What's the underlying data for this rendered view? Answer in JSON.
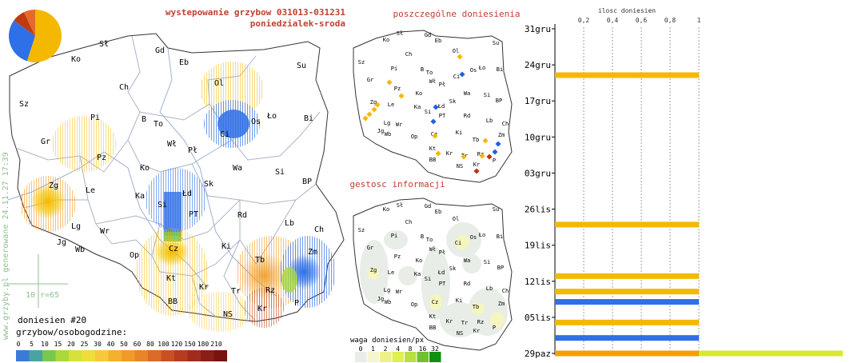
{
  "title": {
    "line1": "wystepowanie grzybow 031013-031231",
    "line2": "poniedzialek-sroda"
  },
  "watermark": "www.grzyby.pl generowane 24.11.27 17:39",
  "scale_marker": "10 r=65",
  "reports_count": "doniesien #20",
  "colorscale": {
    "title": "grzybow/osobogodzine:",
    "ticks": [
      "0",
      "5",
      "10",
      "15",
      "20",
      "25",
      "30",
      "40",
      "50",
      "60",
      "80",
      "100",
      "120",
      "150",
      "180",
      "210"
    ],
    "colors": [
      "#3a7bd5",
      "#4aa3a0",
      "#78c850",
      "#a9d93a",
      "#d6e23a",
      "#f0dc3a",
      "#f7c83a",
      "#f5b030",
      "#f09a2a",
      "#e8842a",
      "#dc6a28",
      "#c85024",
      "#b43c20",
      "#a02c1c",
      "#8c1e18",
      "#781410"
    ]
  },
  "main_map": {
    "labels": [
      {
        "text": "Sł",
        "x": 130,
        "y": 58
      },
      {
        "text": "Gd",
        "x": 200,
        "y": 66
      },
      {
        "text": "Ko",
        "x": 95,
        "y": 77
      },
      {
        "text": "Eb",
        "x": 230,
        "y": 81
      },
      {
        "text": "Su",
        "x": 377,
        "y": 85
      },
      {
        "text": "Ol",
        "x": 274,
        "y": 107
      },
      {
        "text": "Ch",
        "x": 155,
        "y": 112
      },
      {
        "text": "Sz",
        "x": 30,
        "y": 133
      },
      {
        "text": "Pi",
        "x": 119,
        "y": 150
      },
      {
        "text": "B",
        "x": 180,
        "y": 152
      },
      {
        "text": "To",
        "x": 198,
        "y": 158
      },
      {
        "text": "Os",
        "x": 320,
        "y": 155
      },
      {
        "text": "Ło",
        "x": 340,
        "y": 148
      },
      {
        "text": "Bi",
        "x": 386,
        "y": 151
      },
      {
        "text": "Ci",
        "x": 281,
        "y": 171
      },
      {
        "text": "Gr",
        "x": 57,
        "y": 180
      },
      {
        "text": "Wł",
        "x": 215,
        "y": 183
      },
      {
        "text": "Pł",
        "x": 241,
        "y": 191
      },
      {
        "text": "Pz",
        "x": 127,
        "y": 200
      },
      {
        "text": "Ko",
        "x": 181,
        "y": 213
      },
      {
        "text": "Wa",
        "x": 297,
        "y": 213
      },
      {
        "text": "Si",
        "x": 350,
        "y": 218
      },
      {
        "text": "BP",
        "x": 384,
        "y": 230
      },
      {
        "text": "Zg",
        "x": 67,
        "y": 235
      },
      {
        "text": "Sk",
        "x": 261,
        "y": 233
      },
      {
        "text": "Łd",
        "x": 234,
        "y": 245
      },
      {
        "text": "Le",
        "x": 113,
        "y": 241
      },
      {
        "text": "Ka",
        "x": 175,
        "y": 248
      },
      {
        "text": "Si",
        "x": 203,
        "y": 259
      },
      {
        "text": "PT",
        "x": 242,
        "y": 271
      },
      {
        "text": "Rd",
        "x": 303,
        "y": 272
      },
      {
        "text": "Lb",
        "x": 362,
        "y": 282
      },
      {
        "text": "Lg",
        "x": 95,
        "y": 286
      },
      {
        "text": "Wr",
        "x": 131,
        "y": 292
      },
      {
        "text": "Ch",
        "x": 399,
        "y": 290
      },
      {
        "text": "Jg",
        "x": 77,
        "y": 306
      },
      {
        "text": "Wb",
        "x": 100,
        "y": 315
      },
      {
        "text": "Cz",
        "x": 217,
        "y": 314
      },
      {
        "text": "Ki",
        "x": 283,
        "y": 311
      },
      {
        "text": "Op",
        "x": 168,
        "y": 322
      },
      {
        "text": "Zm",
        "x": 391,
        "y": 318
      },
      {
        "text": "Tb",
        "x": 325,
        "y": 328
      },
      {
        "text": "Kt",
        "x": 214,
        "y": 351
      },
      {
        "text": "Rz",
        "x": 338,
        "y": 366
      },
      {
        "text": "Kr",
        "x": 255,
        "y": 362
      },
      {
        "text": "Tr",
        "x": 295,
        "y": 367
      },
      {
        "text": "P",
        "x": 371,
        "y": 382
      },
      {
        "text": "BB",
        "x": 216,
        "y": 380
      },
      {
        "text": "Kr",
        "x": 328,
        "y": 389
      },
      {
        "text": "NS",
        "x": 285,
        "y": 396
      }
    ]
  },
  "panel_titles": {
    "reports": "poszczególne doniesienia",
    "density": "gestosc informacji"
  },
  "small_map": {
    "labels": [
      {
        "text": "Sł",
        "x": 500,
        "y": 44
      },
      {
        "text": "Gd",
        "x": 535,
        "y": 46
      },
      {
        "text": "Ko",
        "x": 483,
        "y": 52
      },
      {
        "text": "Eb",
        "x": 548,
        "y": 53
      },
      {
        "text": "Su",
        "x": 620,
        "y": 56
      },
      {
        "text": "Ol",
        "x": 570,
        "y": 66
      },
      {
        "text": "Ch",
        "x": 511,
        "y": 70
      },
      {
        "text": "Sz",
        "x": 452,
        "y": 80
      },
      {
        "text": "Pi",
        "x": 493,
        "y": 88
      },
      {
        "text": "B",
        "x": 528,
        "y": 89
      },
      {
        "text": "To",
        "x": 537,
        "y": 93
      },
      {
        "text": "Os",
        "x": 592,
        "y": 90
      },
      {
        "text": "Ło",
        "x": 603,
        "y": 87
      },
      {
        "text": "Bi",
        "x": 625,
        "y": 89
      },
      {
        "text": "Ci",
        "x": 571,
        "y": 98
      },
      {
        "text": "Gr",
        "x": 463,
        "y": 102
      },
      {
        "text": "Wł",
        "x": 541,
        "y": 104
      },
      {
        "text": "Pł",
        "x": 553,
        "y": 108
      },
      {
        "text": "Pz",
        "x": 497,
        "y": 113
      },
      {
        "text": "Ko",
        "x": 524,
        "y": 119
      },
      {
        "text": "Wa",
        "x": 584,
        "y": 119
      },
      {
        "text": "Si",
        "x": 609,
        "y": 121
      },
      {
        "text": "BP",
        "x": 624,
        "y": 128
      },
      {
        "text": "Zg",
        "x": 467,
        "y": 130
      },
      {
        "text": "Sk",
        "x": 566,
        "y": 129
      },
      {
        "text": "Łd",
        "x": 552,
        "y": 135
      },
      {
        "text": "Le",
        "x": 489,
        "y": 133
      },
      {
        "text": "Ka",
        "x": 522,
        "y": 136
      },
      {
        "text": "Si",
        "x": 535,
        "y": 142
      },
      {
        "text": "PT",
        "x": 553,
        "y": 147
      },
      {
        "text": "Rd",
        "x": 584,
        "y": 147
      },
      {
        "text": "Lb",
        "x": 612,
        "y": 153
      },
      {
        "text": "Lg",
        "x": 484,
        "y": 156
      },
      {
        "text": "Wr",
        "x": 499,
        "y": 158
      },
      {
        "text": "Ch",
        "x": 632,
        "y": 157
      },
      {
        "text": "Jg",
        "x": 476,
        "y": 166
      },
      {
        "text": "Wb",
        "x": 485,
        "y": 170
      },
      {
        "text": "Cz",
        "x": 543,
        "y": 170
      },
      {
        "text": "Ki",
        "x": 574,
        "y": 168
      },
      {
        "text": "Op",
        "x": 518,
        "y": 173
      },
      {
        "text": "Zm",
        "x": 627,
        "y": 171
      },
      {
        "text": "Tb",
        "x": 595,
        "y": 177
      },
      {
        "text": "Kt",
        "x": 541,
        "y": 188
      },
      {
        "text": "Rz",
        "x": 601,
        "y": 195
      },
      {
        "text": "Kr",
        "x": 562,
        "y": 194
      },
      {
        "text": "Tr",
        "x": 581,
        "y": 197
      },
      {
        "text": "P",
        "x": 618,
        "y": 203
      },
      {
        "text": "BB",
        "x": 541,
        "y": 202
      },
      {
        "text": "NS",
        "x": 575,
        "y": 210
      },
      {
        "text": "Kr",
        "x": 596,
        "y": 208
      }
    ],
    "dots": [
      {
        "x": 575,
        "y": 71,
        "color": "#f5b800"
      },
      {
        "x": 578,
        "y": 93,
        "color": "#2060e0"
      },
      {
        "x": 487,
        "y": 103,
        "color": "#f5b800"
      },
      {
        "x": 502,
        "y": 120,
        "color": "#f5b800"
      },
      {
        "x": 472,
        "y": 131,
        "color": "#f5b800"
      },
      {
        "x": 468,
        "y": 137,
        "color": "#f5b800"
      },
      {
        "x": 462,
        "y": 143,
        "color": "#f5b800"
      },
      {
        "x": 457,
        "y": 148,
        "color": "#f5b800"
      },
      {
        "x": 545,
        "y": 134,
        "color": "#2060e0"
      },
      {
        "x": 542,
        "y": 152,
        "color": "#2060e0"
      },
      {
        "x": 544,
        "y": 170,
        "color": "#f5b800"
      },
      {
        "x": 548,
        "y": 192,
        "color": "#f5b800"
      },
      {
        "x": 580,
        "y": 196,
        "color": "#f5b800"
      },
      {
        "x": 607,
        "y": 176,
        "color": "#f5b800"
      },
      {
        "x": 623,
        "y": 180,
        "color": "#2060e0"
      },
      {
        "x": 619,
        "y": 190,
        "color": "#2060e0"
      },
      {
        "x": 603,
        "y": 195,
        "color": "#f5b800"
      },
      {
        "x": 612,
        "y": 196,
        "color": "#c03010"
      },
      {
        "x": 596,
        "y": 214,
        "color": "#c03010"
      }
    ]
  },
  "density_map": {
    "labels": [
      {
        "text": "Sł",
        "x": 500,
        "y": 259
      },
      {
        "text": "Gd",
        "x": 535,
        "y": 260
      },
      {
        "text": "Ko",
        "x": 483,
        "y": 264
      },
      {
        "text": "Eb",
        "x": 548,
        "y": 267
      },
      {
        "text": "Su",
        "x": 620,
        "y": 264
      },
      {
        "text": "Ol",
        "x": 570,
        "y": 276
      },
      {
        "text": "Ch",
        "x": 511,
        "y": 280
      },
      {
        "text": "Sz",
        "x": 452,
        "y": 290
      },
      {
        "text": "Pi",
        "x": 493,
        "y": 297
      },
      {
        "text": "B",
        "x": 528,
        "y": 298
      },
      {
        "text": "To",
        "x": 537,
        "y": 302
      },
      {
        "text": "Os",
        "x": 592,
        "y": 299
      },
      {
        "text": "Ło",
        "x": 603,
        "y": 296
      },
      {
        "text": "Bi",
        "x": 625,
        "y": 298
      },
      {
        "text": "Ci",
        "x": 573,
        "y": 306
      },
      {
        "text": "Gr",
        "x": 463,
        "y": 312
      },
      {
        "text": "Wł",
        "x": 541,
        "y": 314
      },
      {
        "text": "Pł",
        "x": 553,
        "y": 318
      },
      {
        "text": "Pz",
        "x": 497,
        "y": 323
      },
      {
        "text": "Ko",
        "x": 524,
        "y": 328
      },
      {
        "text": "Wa",
        "x": 584,
        "y": 328
      },
      {
        "text": "Si",
        "x": 609,
        "y": 330
      },
      {
        "text": "BP",
        "x": 626,
        "y": 337
      },
      {
        "text": "Zg",
        "x": 467,
        "y": 340
      },
      {
        "text": "Sk",
        "x": 566,
        "y": 338
      },
      {
        "text": "Łd",
        "x": 552,
        "y": 343
      },
      {
        "text": "Le",
        "x": 489,
        "y": 343
      },
      {
        "text": "Ka",
        "x": 522,
        "y": 345
      },
      {
        "text": "Si",
        "x": 535,
        "y": 351
      },
      {
        "text": "PT",
        "x": 553,
        "y": 357
      },
      {
        "text": "Rd",
        "x": 584,
        "y": 357
      },
      {
        "text": "Lb",
        "x": 612,
        "y": 363
      },
      {
        "text": "Lg",
        "x": 484,
        "y": 365
      },
      {
        "text": "Wr",
        "x": 499,
        "y": 367
      },
      {
        "text": "Ch",
        "x": 632,
        "y": 366
      },
      {
        "text": "Jg",
        "x": 476,
        "y": 376
      },
      {
        "text": "Wb",
        "x": 485,
        "y": 380
      },
      {
        "text": "Cz",
        "x": 544,
        "y": 380
      },
      {
        "text": "Ki",
        "x": 574,
        "y": 378
      },
      {
        "text": "Op",
        "x": 518,
        "y": 383
      },
      {
        "text": "Zm",
        "x": 627,
        "y": 382
      },
      {
        "text": "Tb",
        "x": 595,
        "y": 386
      },
      {
        "text": "Kt",
        "x": 541,
        "y": 398
      },
      {
        "text": "Rz",
        "x": 601,
        "y": 405
      },
      {
        "text": "Kr",
        "x": 562,
        "y": 404
      },
      {
        "text": "Tr",
        "x": 581,
        "y": 406
      },
      {
        "text": "P",
        "x": 618,
        "y": 412
      },
      {
        "text": "BB",
        "x": 541,
        "y": 412
      },
      {
        "text": "NS",
        "x": 575,
        "y": 419
      },
      {
        "text": "Kr",
        "x": 596,
        "y": 416
      }
    ],
    "legend_title": "waga doniesien/px",
    "legend_ticks": [
      "0",
      "1",
      "2",
      "4",
      "8",
      "16",
      "32"
    ],
    "legend_colors": [
      "#e8ede8",
      "#f5f5d0",
      "#f0f088",
      "#e0f050",
      "#b8e040",
      "#70c030",
      "#109010"
    ]
  },
  "pie": {
    "slices": [
      {
        "value": 0.55,
        "color": "#f5b800"
      },
      {
        "value": 0.3,
        "color": "#2f6fe8"
      },
      {
        "value": 0.08,
        "color": "#c03a10"
      },
      {
        "value": 0.07,
        "color": "#e8682a"
      }
    ]
  },
  "chart_data": {
    "type": "bar",
    "title": "ilosc doniesien",
    "xlim": [
      0,
      1
    ],
    "x_ticks": [
      "0,2",
      "0,4",
      "0,6",
      "0,8",
      "1"
    ],
    "y_ticks": [
      "31gru",
      "24gru",
      "17gru",
      "10gru",
      "03gru",
      "26lis",
      "19lis",
      "12lis",
      "05lis",
      "29paz"
    ],
    "bars": [
      {
        "date": "22gru",
        "value": 1.0,
        "color": "#f5b800"
      },
      {
        "date": "23lis",
        "value": 1.0,
        "color": "#f5b800"
      },
      {
        "date": "13lis",
        "value": 1.0,
        "color": "#f5b800"
      },
      {
        "date": "10lis",
        "value": 1.0,
        "color": "#f5b800"
      },
      {
        "date": "08lis",
        "value": 1.0,
        "color": "#2f6fe8"
      },
      {
        "date": "04lis",
        "value": 1.0,
        "color": "#f5b800"
      },
      {
        "date": "01lis",
        "value": 1.0,
        "color": "#2f6fe8"
      },
      {
        "date": "29paz",
        "value": 1.0,
        "color": "#f5b800"
      },
      {
        "date": "29paz",
        "value": 2.0,
        "color": "#d8e830"
      }
    ]
  }
}
